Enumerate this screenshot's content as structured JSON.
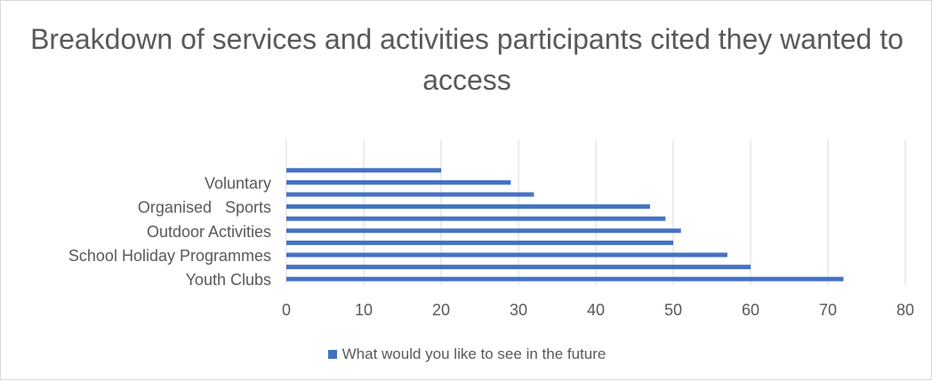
{
  "chart_data": {
    "type": "bar",
    "orientation": "horizontal",
    "title": "Breakdown of services and activities participants cited they wanted to access",
    "categories": [
      "Youth Clubs",
      "",
      "School Holiday Programmes",
      "",
      "Outdoor Activities",
      "",
      "Organised   Sports",
      "",
      "Voluntary",
      ""
    ],
    "series": [
      {
        "name": "What would you like to see in the future",
        "color": "#4472c4",
        "values": [
          72,
          60,
          57,
          50,
          51,
          49,
          47,
          32,
          29,
          20
        ]
      }
    ],
    "xlim": [
      0,
      80
    ],
    "xticks": [
      0,
      10,
      20,
      30,
      40,
      50,
      60,
      70,
      80
    ],
    "grid": "vertical",
    "legend_position": "bottom"
  }
}
